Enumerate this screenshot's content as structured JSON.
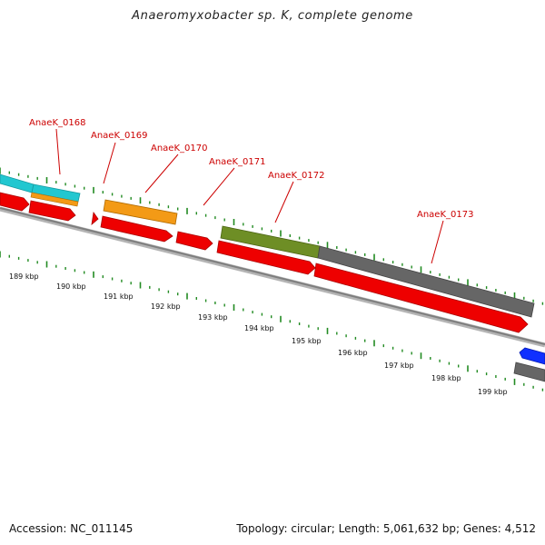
{
  "title": "Anaeromyxobacter sp. K, complete genome",
  "footer": {
    "accession": "Accession: NC_011145",
    "summary": "Topology: circular; Length: 5,061,632 bp; Genes: 4,512"
  },
  "colors": {
    "cds": "#ee0000",
    "tick": "#228b22",
    "backbone": "#8a8a8a",
    "label": "#cc0000",
    "cyan_feature": "#22c7d0",
    "orange_feature": "#f39a16",
    "olive_feature": "#6e8e25",
    "gray_feature": "#666666",
    "blue_feature": "#1030ff"
  },
  "gene_labels": [
    "AnaeK_0168",
    "AnaeK_0169",
    "AnaeK_0170",
    "AnaeK_0171",
    "AnaeK_0172",
    "AnaeK_0173"
  ],
  "kbp_labels": [
    "189 kbp",
    "190 kbp",
    "191 kbp",
    "192 kbp",
    "193 kbp",
    "194 kbp",
    "195 kbp",
    "196 kbp",
    "197 kbp",
    "198 kbp",
    "199 kbp"
  ]
}
